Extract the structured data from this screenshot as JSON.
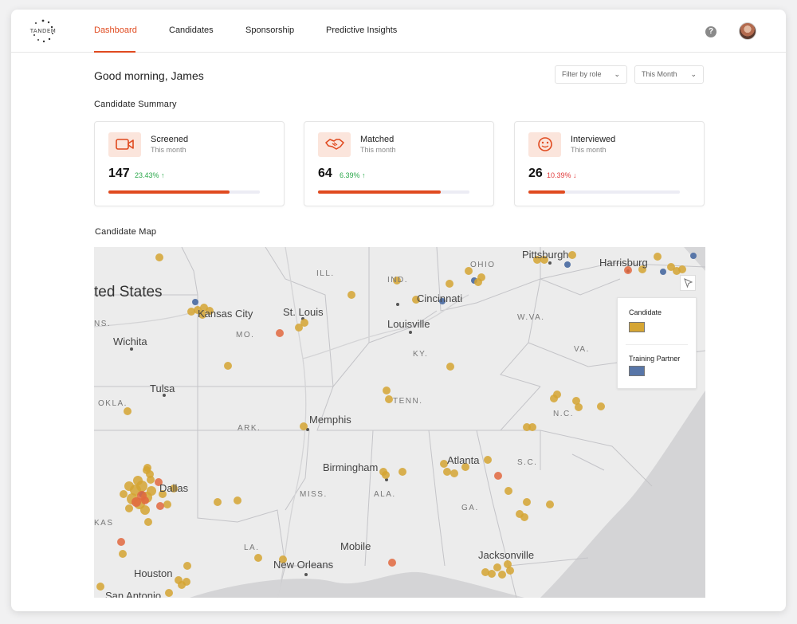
{
  "brand": {
    "logo_text": "TANDEM"
  },
  "nav": {
    "items": [
      {
        "label": "Dashboard",
        "active": true
      },
      {
        "label": "Candidates",
        "active": false
      },
      {
        "label": "Sponsorship",
        "active": false
      },
      {
        "label": "Predictive Insights",
        "active": false
      }
    ],
    "help_symbol": "?"
  },
  "greeting": "Good morning, James",
  "filters": {
    "role": {
      "label": "Filter by role",
      "icon": "chevron-down-icon"
    },
    "period": {
      "label": "This Month",
      "icon": "chevron-down-icon"
    }
  },
  "summary": {
    "title": "Candidate Summary",
    "cards": [
      {
        "title": "Screened",
        "subtitle": "This month",
        "value": "147",
        "change": "23.43% ↑",
        "trend": "up",
        "progress": 0.8,
        "icon": "video-camera-icon"
      },
      {
        "title": "Matched",
        "subtitle": "This month",
        "value": "64",
        "change": "6.39% ↑",
        "trend": "up",
        "progress": 0.81,
        "icon": "handshake-icon"
      },
      {
        "title": "Interviewed",
        "subtitle": "This month",
        "value": "26",
        "change": "10.39% ↓",
        "trend": "down",
        "progress": 0.24,
        "icon": "chat-face-icon"
      }
    ]
  },
  "map": {
    "title": "Candidate Map",
    "country_label": "ted States",
    "cities": [
      "Kansas City",
      "St. Louis",
      "Wichita",
      "Tulsa",
      "Louisville",
      "Cincinnati",
      "Pittsburgh",
      "Harrisburg",
      "Memphis",
      "Birmingham",
      "Atlanta",
      "Mobile",
      "New Orleans",
      "Jacksonville",
      "Houston",
      "San Antonio",
      "Dallas"
    ],
    "states": [
      "ILL.",
      "IND.",
      "OHIO",
      "MO.",
      "KY.",
      "W.VA.",
      "VA.",
      "N.C.",
      "TENN.",
      "OKLA.",
      "ARK.",
      "S.C.",
      "MISS.",
      "ALA.",
      "GA.",
      "LA.",
      "KAS",
      "NS."
    ],
    "legend": {
      "candidate_label": "Candidate",
      "partner_label": "Training Partner",
      "candidate_color": "#d5a533",
      "partner_color": "#5876a8",
      "hot_color": "#e2683f"
    }
  }
}
